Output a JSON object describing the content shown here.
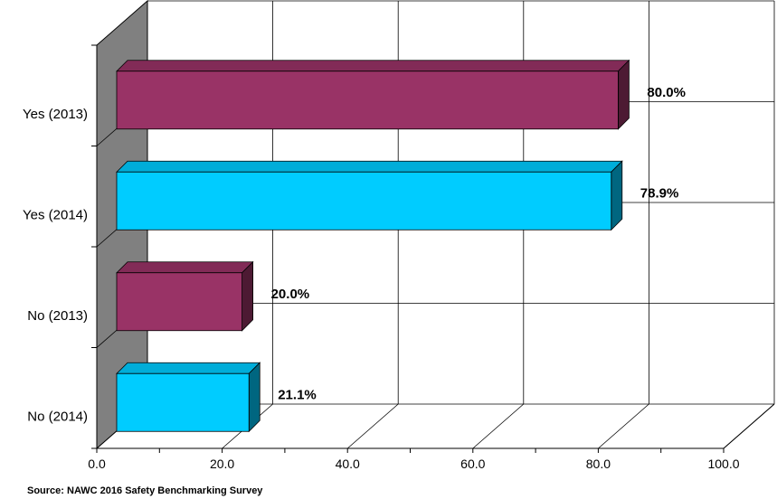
{
  "chart_data": {
    "type": "bar",
    "orientation": "horizontal",
    "style": "3d",
    "categories": [
      "Yes (2013)",
      "Yes (2014)",
      "No (2013)",
      "No (2014)"
    ],
    "values": [
      80.0,
      78.9,
      20.0,
      21.1
    ],
    "data_labels": [
      "80.0%",
      "78.9%",
      "20.0%",
      "21.1%"
    ],
    "bar_colors": [
      "#993366",
      "#00CCFF",
      "#993366",
      "#00CCFF"
    ],
    "xlim": [
      0,
      100
    ],
    "x_ticks": [
      0,
      20,
      40,
      60,
      80,
      100
    ],
    "x_tick_labels": [
      "0.0",
      "20.0",
      "40.0",
      "60.0",
      "80.0",
      "100.0"
    ],
    "grid": true,
    "legend": "none",
    "wall_color": "#808080"
  },
  "source": "Source:  NAWC 2016 Safety Benchmarking Survey"
}
